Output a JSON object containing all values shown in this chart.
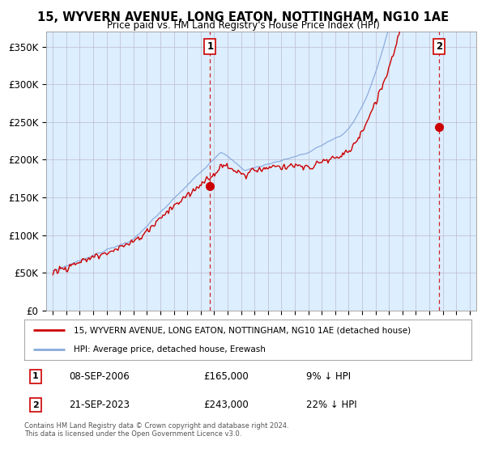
{
  "title_line1": "15, WYVERN AVENUE, LONG EATON, NOTTINGHAM, NG10 1AE",
  "title_line2": "Price paid vs. HM Land Registry's House Price Index (HPI)",
  "ylabel_ticks": [
    "£0",
    "£50K",
    "£100K",
    "£150K",
    "£200K",
    "£250K",
    "£300K",
    "£350K"
  ],
  "ytick_values": [
    0,
    50000,
    100000,
    150000,
    200000,
    250000,
    300000,
    350000
  ],
  "ylim": [
    0,
    370000
  ],
  "xlim_start": 1994.5,
  "xlim_end": 2026.5,
  "marker1_x": 2006.69,
  "marker1_y": 165000,
  "marker1_label": "1",
  "marker2_x": 2023.72,
  "marker2_y": 243000,
  "marker2_label": "2",
  "sale_color": "#cc0000",
  "hpi_color": "#88aadd",
  "plot_bg_color": "#ddeeff",
  "marker_box_color": "#cc0000",
  "legend_sale_label": "15, WYVERN AVENUE, LONG EATON, NOTTINGHAM, NG10 1AE (detached house)",
  "legend_hpi_label": "HPI: Average price, detached house, Erewash",
  "note1_label": "1",
  "note1_date": "08-SEP-2006",
  "note1_price": "£165,000",
  "note1_hpi": "9% ↓ HPI",
  "note2_label": "2",
  "note2_date": "21-SEP-2023",
  "note2_price": "£243,000",
  "note2_hpi": "22% ↓ HPI",
  "copyright": "Contains HM Land Registry data © Crown copyright and database right 2024.\nThis data is licensed under the Open Government Licence v3.0.",
  "background_color": "#ffffff",
  "grid_color": "#bbbbcc"
}
